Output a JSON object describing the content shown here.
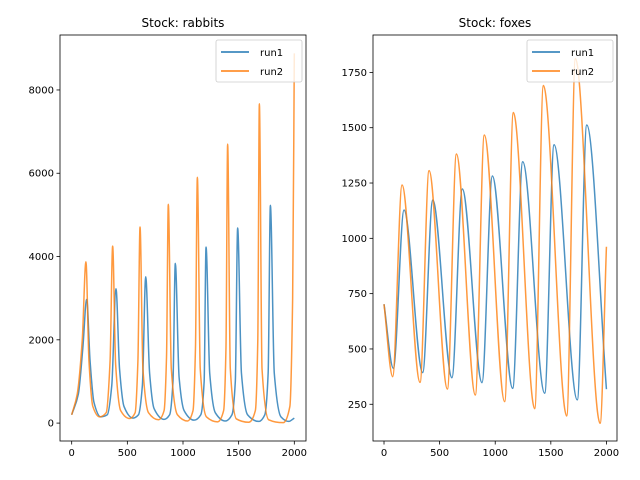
{
  "chart_data": [
    {
      "type": "line",
      "title": "Stock: rabbits",
      "xlim": [
        -105,
        2105
      ],
      "ylim": [
        -430,
        9320
      ],
      "xticks": [
        0,
        500,
        1000,
        1500,
        2000
      ],
      "yticks": [
        0,
        2000,
        4000,
        6000,
        8000
      ],
      "grid": false,
      "legend": "upper-right",
      "series": [
        {
          "name": "run1",
          "color": "#1f77b4",
          "points": [
            [
              0,
              200
            ],
            [
              60,
              700
            ],
            [
              100,
              1800
            ],
            [
              135,
              2970
            ],
            [
              165,
              1500
            ],
            [
              200,
              500
            ],
            [
              260,
              150
            ],
            [
              320,
              200
            ],
            [
              360,
              900
            ],
            [
              398,
              3226
            ],
            [
              430,
              1300
            ],
            [
              470,
              400
            ],
            [
              550,
              120
            ],
            [
              600,
              200
            ],
            [
              635,
              900
            ],
            [
              665,
              3515
            ],
            [
              700,
              1200
            ],
            [
              740,
              350
            ],
            [
              830,
              90
            ],
            [
              880,
              200
            ],
            [
              910,
              1000
            ],
            [
              931,
              3836
            ],
            [
              965,
              1100
            ],
            [
              1010,
              300
            ],
            [
              1100,
              70
            ],
            [
              1160,
              200
            ],
            [
              1190,
              1000
            ],
            [
              1207,
              4227
            ],
            [
              1240,
              1200
            ],
            [
              1290,
              250
            ],
            [
              1380,
              50
            ],
            [
              1440,
              200
            ],
            [
              1470,
              1000
            ],
            [
              1491,
              4684
            ],
            [
              1525,
              1200
            ],
            [
              1580,
              200
            ],
            [
              1680,
              40
            ],
            [
              1735,
              200
            ],
            [
              1765,
              1200
            ],
            [
              1785,
              5228
            ],
            [
              1820,
              1200
            ],
            [
              1880,
              150
            ],
            [
              1950,
              40
            ],
            [
              2000,
              120
            ]
          ]
        },
        {
          "name": "run2",
          "color": "#ff7f0e",
          "points": [
            [
              0,
              200
            ],
            [
              50,
              700
            ],
            [
              95,
              2000
            ],
            [
              128,
              3875
            ],
            [
              155,
              1500
            ],
            [
              190,
              400
            ],
            [
              250,
              150
            ],
            [
              310,
              250
            ],
            [
              345,
              1500
            ],
            [
              368,
              4250
            ],
            [
              395,
              1400
            ],
            [
              440,
              300
            ],
            [
              520,
              110
            ],
            [
              570,
              250
            ],
            [
              595,
              1500
            ],
            [
              614,
              4708
            ],
            [
              640,
              1300
            ],
            [
              690,
              250
            ],
            [
              780,
              80
            ],
            [
              830,
              300
            ],
            [
              852,
              1600
            ],
            [
              868,
              5252
            ],
            [
              895,
              1300
            ],
            [
              950,
              200
            ],
            [
              1040,
              50
            ],
            [
              1090,
              300
            ],
            [
              1112,
              1800
            ],
            [
              1129,
              5900
            ],
            [
              1155,
              1300
            ],
            [
              1210,
              150
            ],
            [
              1310,
              30
            ],
            [
              1365,
              300
            ],
            [
              1386,
              1800
            ],
            [
              1401,
              6700
            ],
            [
              1425,
              1300
            ],
            [
              1480,
              100
            ],
            [
              1590,
              20
            ],
            [
              1650,
              300
            ],
            [
              1672,
              2000
            ],
            [
              1686,
              7670
            ],
            [
              1710,
              1300
            ],
            [
              1770,
              80
            ],
            [
              1900,
              10
            ],
            [
              1960,
              400
            ],
            [
              1985,
              3000
            ],
            [
              2000,
              8880
            ]
          ]
        }
      ]
    },
    {
      "type": "line",
      "title": "Stock: foxes",
      "xlim": [
        -99,
        2095
      ],
      "ylim": [
        84,
        1919
      ],
      "xticks": [
        0,
        500,
        1000,
        1500,
        2000
      ],
      "yticks": [
        250,
        500,
        750,
        1000,
        1250,
        1500,
        1750
      ],
      "grid": false,
      "legend": "upper-right",
      "series": [
        {
          "name": "run1",
          "color": "#1f77b4",
          "points": [
            [
              0,
              702
            ],
            [
              84,
              413
            ],
            [
              180,
              1128
            ],
            [
              348,
              393
            ],
            [
              438,
              1173
            ],
            [
              611,
              370
            ],
            [
              704,
              1223
            ],
            [
              881,
              348
            ],
            [
              974,
              1282
            ],
            [
              1157,
              322
            ],
            [
              1247,
              1346
            ],
            [
              1445,
              300
            ],
            [
              1529,
              1423
            ],
            [
              1738,
              270
            ],
            [
              1823,
              1512
            ],
            [
              2000,
              318
            ]
          ]
        },
        {
          "name": "run2",
          "color": "#ff7f0e",
          "points": [
            [
              0,
              702
            ],
            [
              78,
              375
            ],
            [
              162,
              1241
            ],
            [
              324,
              349
            ],
            [
              405,
              1306
            ],
            [
              570,
              319
            ],
            [
              651,
              1381
            ],
            [
              821,
              292
            ],
            [
              902,
              1467
            ],
            [
              1085,
              262
            ],
            [
              1163,
              1569
            ],
            [
              1355,
              230
            ],
            [
              1433,
              1691
            ],
            [
              1643,
              197
            ],
            [
              1721,
              1813
            ],
            [
              1943,
              164
            ],
            [
              2000,
              962
            ]
          ]
        }
      ]
    }
  ]
}
